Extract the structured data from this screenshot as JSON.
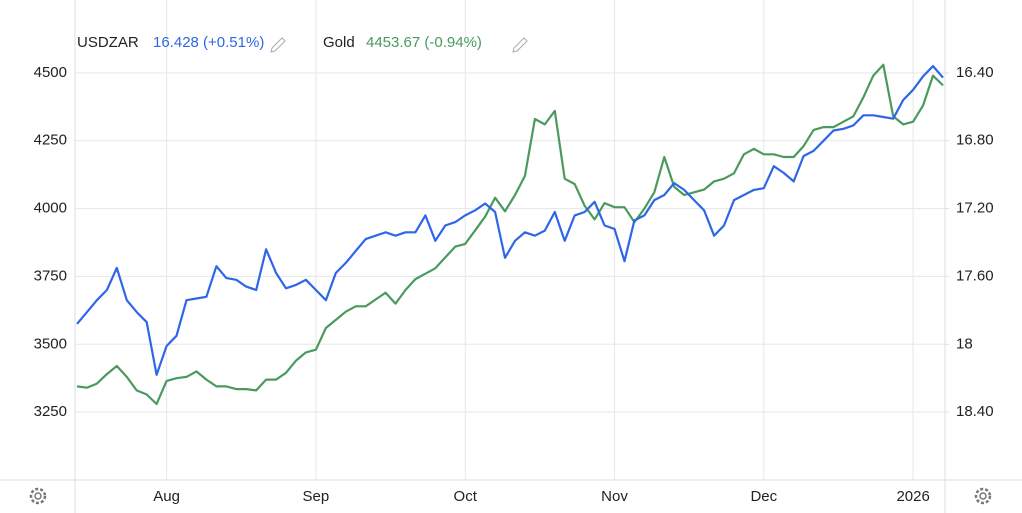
{
  "chart_data": {
    "type": "line",
    "categories": [
      null,
      null,
      null,
      null,
      null,
      null,
      null,
      null,
      null,
      "Aug",
      null,
      null,
      null,
      null,
      null,
      null,
      null,
      null,
      null,
      null,
      null,
      null,
      null,
      null,
      "Sep",
      null,
      null,
      null,
      null,
      null,
      null,
      null,
      null,
      null,
      null,
      null,
      null,
      null,
      null,
      "Oct",
      null,
      null,
      null,
      null,
      null,
      null,
      null,
      null,
      null,
      null,
      null,
      null,
      null,
      null,
      "Nov",
      null,
      null,
      null,
      null,
      null,
      null,
      null,
      null,
      null,
      null,
      null,
      null,
      null,
      null,
      "Dec",
      null,
      null,
      null,
      null,
      null,
      null,
      null,
      null,
      null,
      null,
      null,
      null,
      null,
      null,
      "2026",
      null,
      null,
      null
    ],
    "series": [
      {
        "name": "USDZAR",
        "quote": "16.428 (+0.51%)",
        "color": "#2f66e8",
        "axis": "y2",
        "values": [
          17.88,
          17.81,
          17.74,
          17.68,
          17.55,
          17.74,
          17.81,
          17.87,
          18.18,
          18.01,
          17.95,
          17.74,
          17.73,
          17.72,
          17.54,
          17.61,
          17.62,
          17.66,
          17.68,
          17.44,
          17.58,
          17.67,
          17.65,
          17.62,
          17.68,
          17.74,
          17.58,
          17.52,
          17.45,
          17.38,
          17.36,
          17.34,
          17.36,
          17.34,
          17.34,
          17.24,
          17.39,
          17.3,
          17.28,
          17.24,
          17.21,
          17.17,
          17.22,
          17.49,
          17.39,
          17.34,
          17.36,
          17.33,
          17.22,
          17.39,
          17.24,
          17.22,
          17.16,
          17.3,
          17.32,
          17.51,
          17.27,
          17.24,
          17.15,
          17.12,
          17.05,
          17.09,
          17.15,
          17.21,
          17.36,
          17.3,
          17.15,
          17.12,
          17.09,
          17.08,
          16.95,
          16.99,
          17.04,
          16.89,
          16.86,
          16.8,
          16.74,
          16.73,
          16.71,
          16.65,
          16.65,
          16.66,
          16.67,
          16.56,
          16.5,
          16.42,
          16.36,
          16.428
        ]
      },
      {
        "name": "Gold",
        "quote": "4453.67 (-0.94%)",
        "color": "#4a9a5e",
        "values": [
          3345,
          3340,
          3355,
          3390,
          3420,
          3380,
          3330,
          3315,
          3280,
          3365,
          3375,
          3380,
          3400,
          3370,
          3345,
          3345,
          3335,
          3335,
          3330,
          3370,
          3370,
          3395,
          3440,
          3470,
          3480,
          3560,
          3590,
          3620,
          3640,
          3640,
          3665,
          3690,
          3650,
          3700,
          3740,
          3760,
          3780,
          3820,
          3860,
          3870,
          3920,
          3970,
          4040,
          3990,
          4050,
          4120,
          4330,
          4310,
          4360,
          4110,
          4090,
          4010,
          3960,
          4020,
          4005,
          4005,
          3950,
          4000,
          4060,
          4190,
          4080,
          4050,
          4060,
          4070,
          4100,
          4110,
          4130,
          4200,
          4220,
          4200,
          4200,
          4190,
          4190,
          4230,
          4290,
          4300,
          4300,
          4320,
          4340,
          4410,
          4490,
          4530,
          4340,
          4310,
          4320,
          4380,
          4490,
          4453.67
        ]
      }
    ],
    "ylim": [
      3000,
      4750
    ],
    "yticks": [
      3250,
      3500,
      3750,
      4000,
      4250,
      4500
    ],
    "y2lim": [
      18.8,
      16.0
    ],
    "y2ticks": [
      {
        "value": 18.4,
        "label": "18.40"
      },
      18,
      {
        "value": 17.6,
        "label": "17.60"
      },
      {
        "value": 17.2,
        "label": "17.20"
      },
      {
        "value": 16.8,
        "label": "16.80"
      },
      {
        "value": 16.4,
        "label": "16.40"
      }
    ],
    "grid": true
  }
}
